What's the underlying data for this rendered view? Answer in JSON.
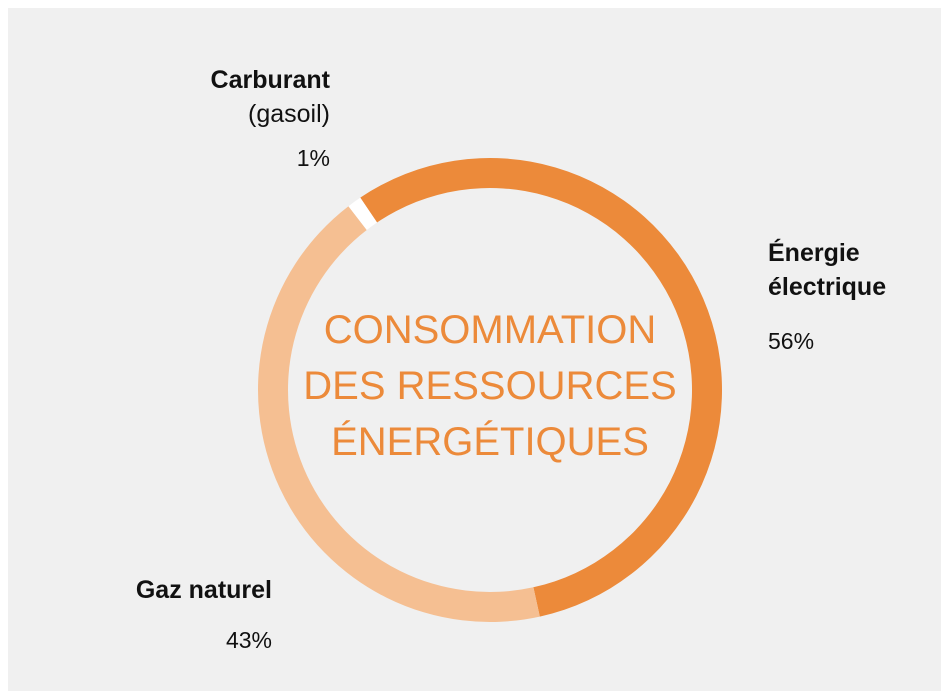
{
  "chart_data": {
    "type": "donut",
    "title": [
      "CONSOMMATION",
      "DES RESSOURCES",
      "ÉNERGÉTIQUES"
    ],
    "categories": [
      "Énergie électrique",
      "Gaz naturel",
      "Carburant"
    ],
    "category_details": {
      "2": "(gasoil)"
    },
    "values": [
      56,
      43,
      1
    ],
    "value_labels": [
      "56%",
      "43%",
      "1%"
    ],
    "colors": [
      "#ec8a3a",
      "#f5bf92",
      "#ffffff"
    ],
    "title_color": "#ec8a3a"
  }
}
